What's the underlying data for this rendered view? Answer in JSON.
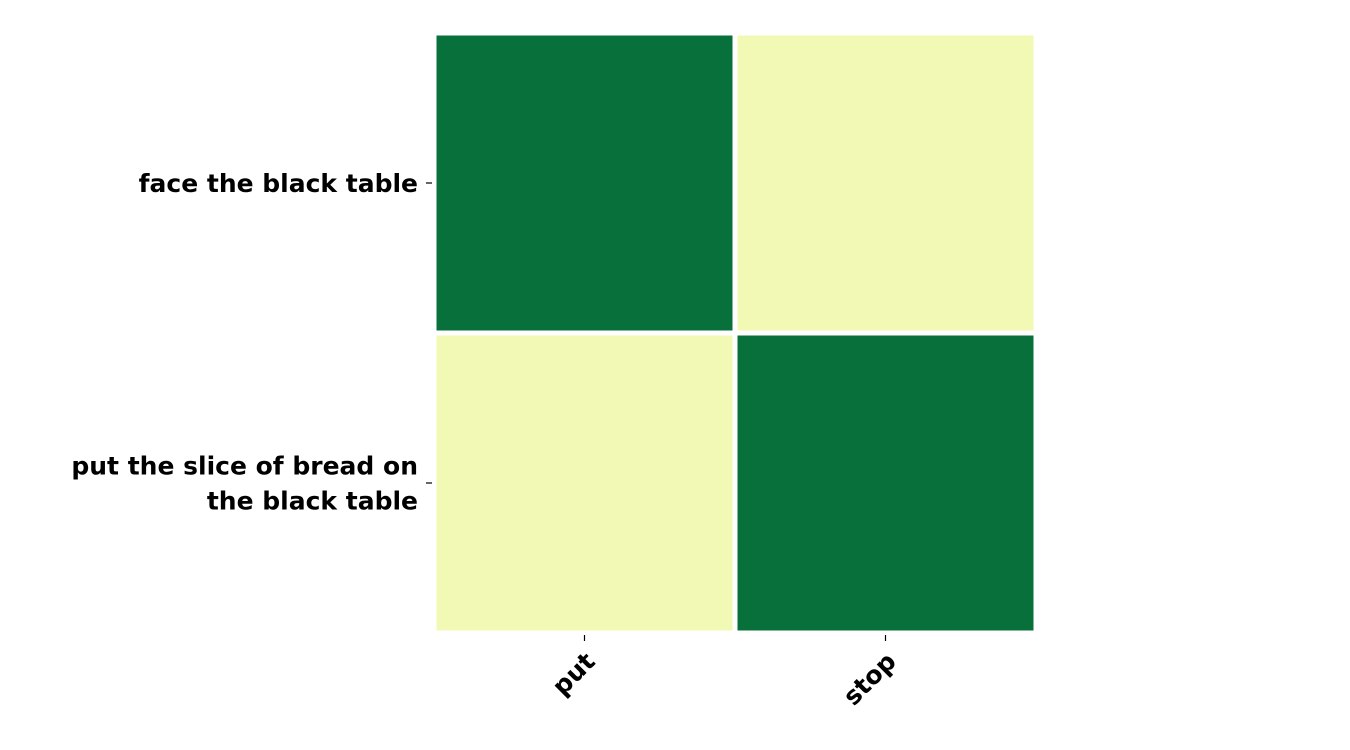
{
  "chart_data": {
    "type": "heatmap",
    "title": "",
    "xlabel": "",
    "ylabel": "",
    "x_categories": [
      "put",
      "stop"
    ],
    "y_categories": [
      "face the black table",
      "put the slice of bread on the black table"
    ],
    "values": [
      [
        1,
        0
      ],
      [
        0,
        1
      ]
    ],
    "colors": {
      "high": "#08703b",
      "low": "#f2f9b4",
      "cell_border": "#ffffff"
    },
    "grid": false,
    "legend": "none"
  }
}
